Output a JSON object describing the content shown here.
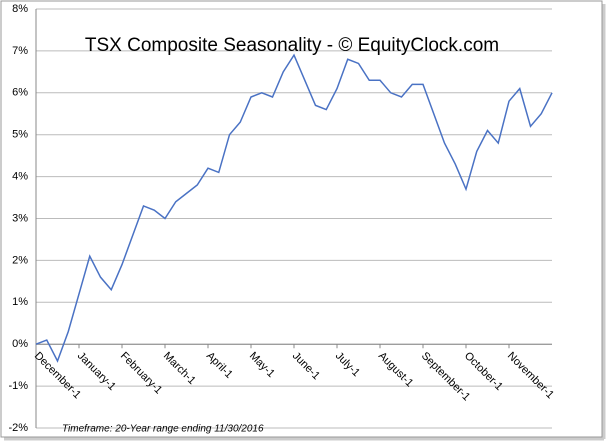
{
  "chart_data": {
    "type": "line",
    "title": "TSX Composite Seasonality - © EquityClock.com",
    "footnote": "Timeframe: 20-Year range ending 11/30/2016",
    "categories": [
      "December-1",
      null,
      null,
      null,
      "January-1",
      null,
      null,
      null,
      "February-1",
      null,
      null,
      null,
      "March-1",
      null,
      null,
      null,
      "April-1",
      null,
      null,
      null,
      "May-1",
      null,
      null,
      null,
      "June-1",
      null,
      null,
      null,
      "July-1",
      null,
      null,
      null,
      "August-1",
      null,
      null,
      null,
      "September-1",
      null,
      null,
      null,
      "October-1",
      null,
      null,
      null,
      "November-1",
      null,
      null,
      null,
      null
    ],
    "series": [
      {
        "name": "TSX Composite",
        "color": "#4a72c4",
        "values": [
          0,
          0.1,
          -0.4,
          0.3,
          1.2,
          2.1,
          1.6,
          1.3,
          1.9,
          2.6,
          3.3,
          3.2,
          3.0,
          3.4,
          3.6,
          3.8,
          4.2,
          4.1,
          5.0,
          5.3,
          5.9,
          6.0,
          5.9,
          6.5,
          6.9,
          6.3,
          5.7,
          5.6,
          6.1,
          6.8,
          6.7,
          6.3,
          6.3,
          6.0,
          5.9,
          6.2,
          6.2,
          5.5,
          4.8,
          4.3,
          3.7,
          4.6,
          5.1,
          4.8,
          5.8,
          6.1,
          5.2,
          5.5,
          6.0
        ]
      }
    ],
    "ylim": [
      -2,
      8
    ],
    "yticks": [
      {
        "value": -2,
        "label": "-2%"
      },
      {
        "value": -1,
        "label": "-1%"
      },
      {
        "value": 0,
        "label": "0%"
      },
      {
        "value": 1,
        "label": "1%"
      },
      {
        "value": 2,
        "label": "2%"
      },
      {
        "value": 3,
        "label": "3%"
      },
      {
        "value": 4,
        "label": "4%"
      },
      {
        "value": 5,
        "label": "5%"
      },
      {
        "value": 6,
        "label": "6%"
      },
      {
        "value": 7,
        "label": "7%"
      },
      {
        "value": 8,
        "label": "8%"
      }
    ],
    "grid": true
  }
}
